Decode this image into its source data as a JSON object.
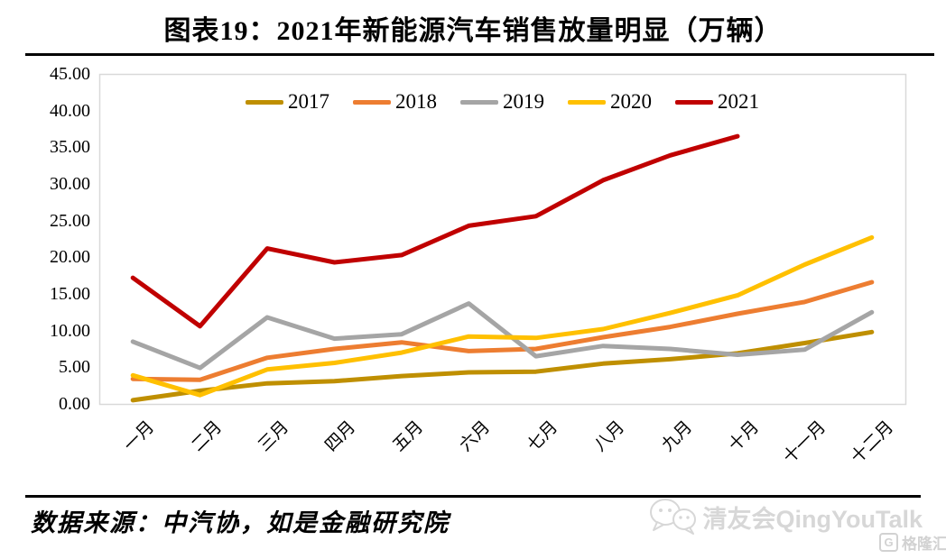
{
  "page": {
    "title": "图表19：2021年新能源汽车销售放量明显（万辆）"
  },
  "chart_data": {
    "type": "line",
    "title": "图表19：2021年新能源汽车销售放量明显（万辆）",
    "unit": "万辆",
    "categories": [
      "一月",
      "二月",
      "三月",
      "四月",
      "五月",
      "六月",
      "七月",
      "八月",
      "九月",
      "十月",
      "十一月",
      "十二月"
    ],
    "series": [
      {
        "name": "2017",
        "color": "#BF8F00",
        "values": [
          0.5,
          1.8,
          2.8,
          3.1,
          3.8,
          4.3,
          4.4,
          5.5,
          6.1,
          6.9,
          8.3,
          9.8
        ]
      },
      {
        "name": "2018",
        "color": "#ED7D31",
        "values": [
          3.4,
          3.3,
          6.3,
          7.5,
          8.4,
          7.2,
          7.5,
          9.1,
          10.5,
          12.3,
          13.9,
          16.6
        ]
      },
      {
        "name": "2019",
        "color": "#A5A5A5",
        "values": [
          8.5,
          4.9,
          11.8,
          8.9,
          9.5,
          13.7,
          6.5,
          7.9,
          7.5,
          6.7,
          7.4,
          12.5
        ]
      },
      {
        "name": "2020",
        "color": "#FFC000",
        "values": [
          3.9,
          1.2,
          4.7,
          5.6,
          7.0,
          9.2,
          9.0,
          10.2,
          12.4,
          14.8,
          19.0,
          22.7
        ]
      },
      {
        "name": "2021",
        "color": "#C00000",
        "values": [
          17.2,
          10.6,
          21.2,
          19.3,
          20.3,
          24.3,
          25.6,
          30.5,
          33.9,
          36.5,
          null,
          null
        ]
      }
    ],
    "ylim": [
      0,
      45
    ],
    "ytick_step": 5,
    "ytick_labels": [
      "0.00",
      "5.00",
      "10.00",
      "15.00",
      "20.00",
      "25.00",
      "30.00",
      "35.00",
      "40.00",
      "45.00"
    ],
    "xlabel": "",
    "ylabel": "",
    "legend_position": "top-center",
    "grid": false,
    "plot_border_color": "#D9D9D9",
    "line_width": 5
  },
  "footer": {
    "source": "数据来源：中汽协，如是金融研究院"
  },
  "watermark": {
    "name": "清友会QingYouTalk",
    "logo": "格隆汇"
  }
}
